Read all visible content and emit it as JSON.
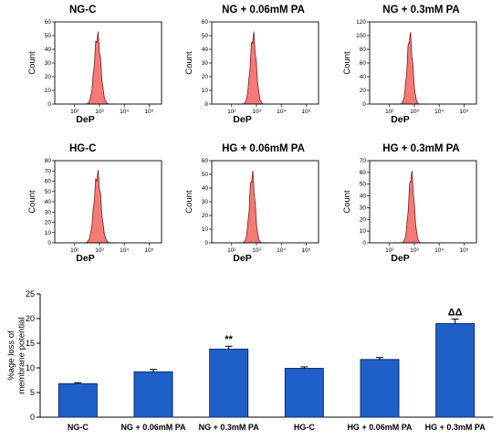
{
  "figure": {
    "histograms": [
      {
        "title": "NG-C",
        "xlabel": "DeP",
        "ylabel": "Count",
        "ymax": 60,
        "yticks": [
          0,
          10,
          20,
          30,
          40,
          50,
          60
        ],
        "xticks": [
          "10²",
          "10³",
          "10⁴",
          "10⁵"
        ],
        "peak_log": 2.92,
        "width": 0.13
      },
      {
        "title": "NG + 0.06mM PA",
        "xlabel": "DeP",
        "ylabel": "Count",
        "ymax": 60,
        "yticks": [
          0,
          10,
          20,
          30,
          40,
          50,
          60
        ],
        "xticks": [
          "10²",
          "10³",
          "10⁴",
          "10⁵"
        ],
        "peak_log": 2.87,
        "width": 0.12
      },
      {
        "title": "NG + 0.3mM PA",
        "xlabel": "DeP",
        "ylabel": "Count",
        "ymax": 120,
        "yticks": [
          0,
          20,
          40,
          60,
          80,
          100,
          120
        ],
        "xticks": [
          "10²",
          "10³",
          "10⁴",
          "10⁵"
        ],
        "peak_log": 2.82,
        "width": 0.11
      },
      {
        "title": "HG-C",
        "xlabel": "DeP",
        "ylabel": "Count",
        "ymax": 80,
        "yticks": [
          0,
          10,
          20,
          30,
          40,
          50,
          60,
          70,
          80
        ],
        "xticks": [
          "10²",
          "10³",
          "10⁴",
          "10⁵"
        ],
        "peak_log": 2.92,
        "width": 0.14
      },
      {
        "title": "HG + 0.06mM PA",
        "xlabel": "DeP",
        "ylabel": "Count",
        "ymax": 60,
        "yticks": [
          0,
          10,
          20,
          30,
          40,
          50,
          60
        ],
        "xticks": [
          "10²",
          "10³",
          "10⁴",
          "10⁵"
        ],
        "peak_log": 2.83,
        "width": 0.11
      },
      {
        "title": "HG + 0.3mM PA",
        "xlabel": "DeP",
        "ylabel": "Count",
        "ymax": 70,
        "yticks": [
          0,
          10,
          20,
          30,
          40,
          50,
          60,
          70
        ],
        "xticks": [
          "10²",
          "10³",
          "10⁴",
          "10⁵"
        ],
        "peak_log": 2.88,
        "width": 0.11
      }
    ],
    "colors": {
      "hist_fill": "#f47a75",
      "hist_edge": "#7a1f1f",
      "bar_fill": "#1f5fc8",
      "bar_edge": "#0c2f6e"
    }
  },
  "chart_data": {
    "type": "bar",
    "ylabel": "%age loss of membrane potential",
    "ylim": [
      0,
      25
    ],
    "yticks": [
      0,
      5,
      10,
      15,
      20,
      25
    ],
    "categories": [
      "NG-C",
      "NG + 0.06mM PA",
      "NG + 0.3mM PA",
      "HG-C",
      "HG + 0.06mM PA",
      "HG + 0.3mM PA"
    ],
    "values": [
      6.8,
      9.2,
      13.8,
      9.9,
      11.7,
      19.0
    ],
    "errors": [
      0.2,
      0.5,
      0.6,
      0.3,
      0.4,
      0.9
    ],
    "annotations": [
      "",
      "",
      "**",
      "",
      "",
      "ΔΔ"
    ]
  }
}
